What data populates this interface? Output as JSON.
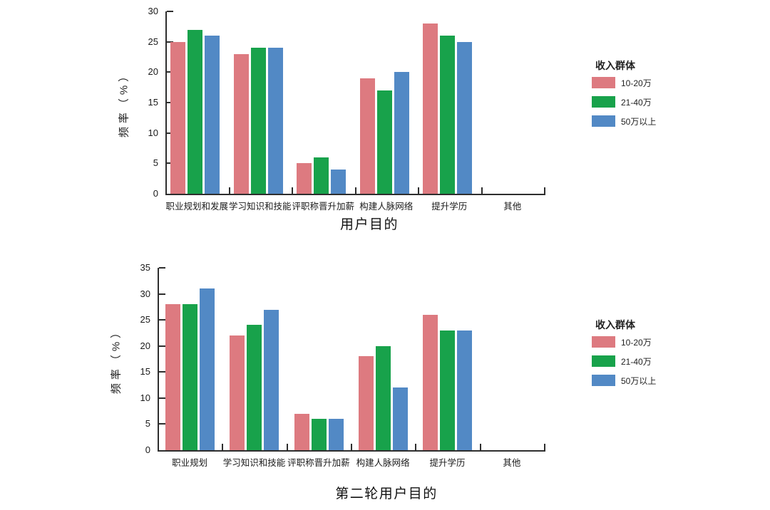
{
  "figure": {
    "background": "#ffffff",
    "axis_color": "#2e2e2e"
  },
  "chart_data": [
    {
      "type": "bar",
      "title": "",
      "xlabel": "用户目的",
      "ylabel": "频率（%）",
      "ylim": [
        0,
        30
      ],
      "yticks": [
        0,
        5,
        10,
        15,
        20,
        25,
        30
      ],
      "grid": false,
      "legend": {
        "title": "收入群体",
        "position": "right"
      },
      "categories": [
        "职业规划和发展",
        "学习知识和技能",
        "评职称晋升加薪",
        "构建人脉网络",
        "提升学历",
        "其他"
      ],
      "series": [
        {
          "name": "10-20万",
          "color": "#dd7a80",
          "values": [
            25,
            23,
            5,
            19,
            28,
            0
          ]
        },
        {
          "name": "21-40万",
          "color": "#18a24b",
          "values": [
            27,
            24,
            6,
            17,
            26,
            0
          ]
        },
        {
          "name": "50万以上",
          "color": "#5289c5",
          "values": [
            26,
            24,
            4,
            20,
            25,
            0
          ]
        }
      ]
    },
    {
      "type": "bar",
      "title": "",
      "xlabel": "第二轮用户目的",
      "ylabel": "频率（%）",
      "ylim": [
        0,
        35
      ],
      "yticks": [
        0,
        5,
        10,
        15,
        20,
        25,
        30,
        35
      ],
      "grid": false,
      "legend": {
        "title": "收入群体",
        "position": "right"
      },
      "categories": [
        "职业规划",
        "学习知识和技能",
        "评职称晋升加薪",
        "构建人脉网络",
        "提升学历",
        "其他"
      ],
      "series": [
        {
          "name": "10-20万",
          "color": "#dd7a80",
          "values": [
            28,
            22,
            7,
            18,
            26,
            0
          ]
        },
        {
          "name": "21-40万",
          "color": "#18a24b",
          "values": [
            28,
            24,
            6,
            20,
            23,
            0
          ]
        },
        {
          "name": "50万以上",
          "color": "#5289c5",
          "values": [
            31,
            27,
            6,
            12,
            23,
            0
          ]
        }
      ]
    }
  ]
}
